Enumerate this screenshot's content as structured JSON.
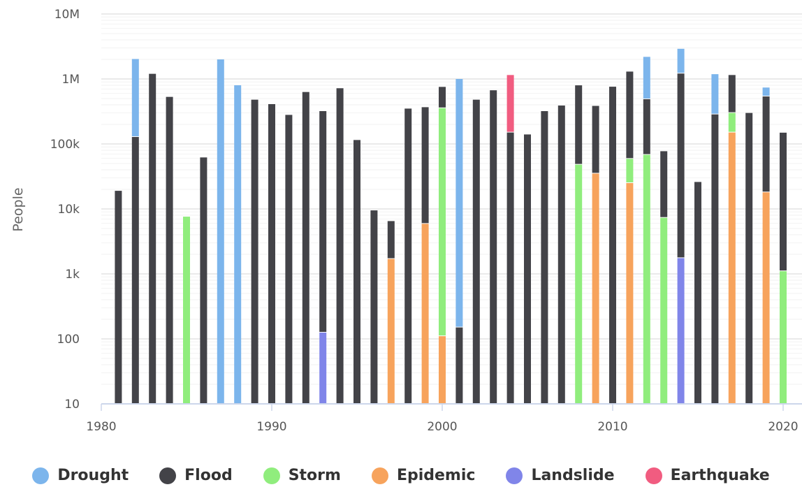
{
  "chart_data": {
    "type": "bar",
    "stacked": true,
    "yscale": "log",
    "ylim": [
      10,
      10000000
    ],
    "xlim": [
      1980,
      2021
    ],
    "ylabel": "People",
    "xlabel": "",
    "y_ticks": [
      10,
      100,
      1000,
      10000,
      100000,
      1000000,
      10000000
    ],
    "y_tick_labels": [
      "10",
      "100",
      "1k",
      "10k",
      "100k",
      "1M",
      "10M"
    ],
    "x_ticks": [
      1980,
      1990,
      2000,
      2010,
      2020
    ],
    "x_tick_labels": [
      "1980",
      "1990",
      "2000",
      "2010",
      "2020"
    ],
    "grid": true,
    "legend_position": "bottom",
    "series_order": [
      "Landslide",
      "Epidemic",
      "Storm",
      "Flood",
      "Earthquake",
      "Drought"
    ],
    "series": [
      {
        "name": "Drought",
        "color": "#7cb5ec",
        "points": [
          [
            1982,
            1900000
          ],
          [
            1987,
            2000000
          ],
          [
            1988,
            800000
          ],
          [
            2001,
            1000000
          ],
          [
            2012,
            1700000
          ],
          [
            2014,
            1700000
          ],
          [
            2016,
            900000
          ],
          [
            2019,
            200000
          ]
        ]
      },
      {
        "name": "Flood",
        "color": "#434348",
        "points": [
          [
            1981,
            19000
          ],
          [
            1982,
            128000
          ],
          [
            1983,
            1200000
          ],
          [
            1984,
            530000
          ],
          [
            1986,
            62000
          ],
          [
            1989,
            480000
          ],
          [
            1990,
            410000
          ],
          [
            1991,
            280000
          ],
          [
            1992,
            630000
          ],
          [
            1993,
            320000
          ],
          [
            1994,
            720000
          ],
          [
            1995,
            115000
          ],
          [
            1996,
            9500
          ],
          [
            1997,
            4800
          ],
          [
            1998,
            350000
          ],
          [
            1999,
            362000
          ],
          [
            2000,
            400000
          ],
          [
            2001,
            150
          ],
          [
            2002,
            480000
          ],
          [
            2003,
            670000
          ],
          [
            2004,
            150000
          ],
          [
            2005,
            140000
          ],
          [
            2006,
            320000
          ],
          [
            2007,
            390000
          ],
          [
            2008,
            750000
          ],
          [
            2009,
            350000
          ],
          [
            2010,
            760000
          ],
          [
            2011,
            1240000
          ],
          [
            2012,
            420000
          ],
          [
            2013,
            70000
          ],
          [
            2014,
            1210000
          ],
          [
            2015,
            26000
          ],
          [
            2016,
            285000
          ],
          [
            2017,
            850000
          ],
          [
            2018,
            300000
          ],
          [
            2019,
            520000
          ],
          [
            2020,
            148000
          ]
        ]
      },
      {
        "name": "Storm",
        "color": "#90ed7d",
        "points": [
          [
            1985,
            7600
          ],
          [
            2000,
            355000
          ],
          [
            2008,
            48000
          ],
          [
            2011,
            34000
          ],
          [
            2012,
            68000
          ],
          [
            2013,
            7300
          ],
          [
            2017,
            150000
          ],
          [
            2020,
            1100
          ]
        ]
      },
      {
        "name": "Epidemic",
        "color": "#f7a35c",
        "points": [
          [
            1997,
            1700
          ],
          [
            1999,
            5900
          ],
          [
            2000,
            110
          ],
          [
            2009,
            35000
          ],
          [
            2011,
            25000
          ],
          [
            2017,
            150000
          ],
          [
            2019,
            18000
          ]
        ]
      },
      {
        "name": "Landslide",
        "color": "#8085e9",
        "points": [
          [
            1993,
            125
          ],
          [
            2014,
            1750
          ]
        ]
      },
      {
        "name": "Earthquake",
        "color": "#f15c80",
        "points": [
          [
            2004,
            1000000
          ]
        ]
      }
    ]
  }
}
